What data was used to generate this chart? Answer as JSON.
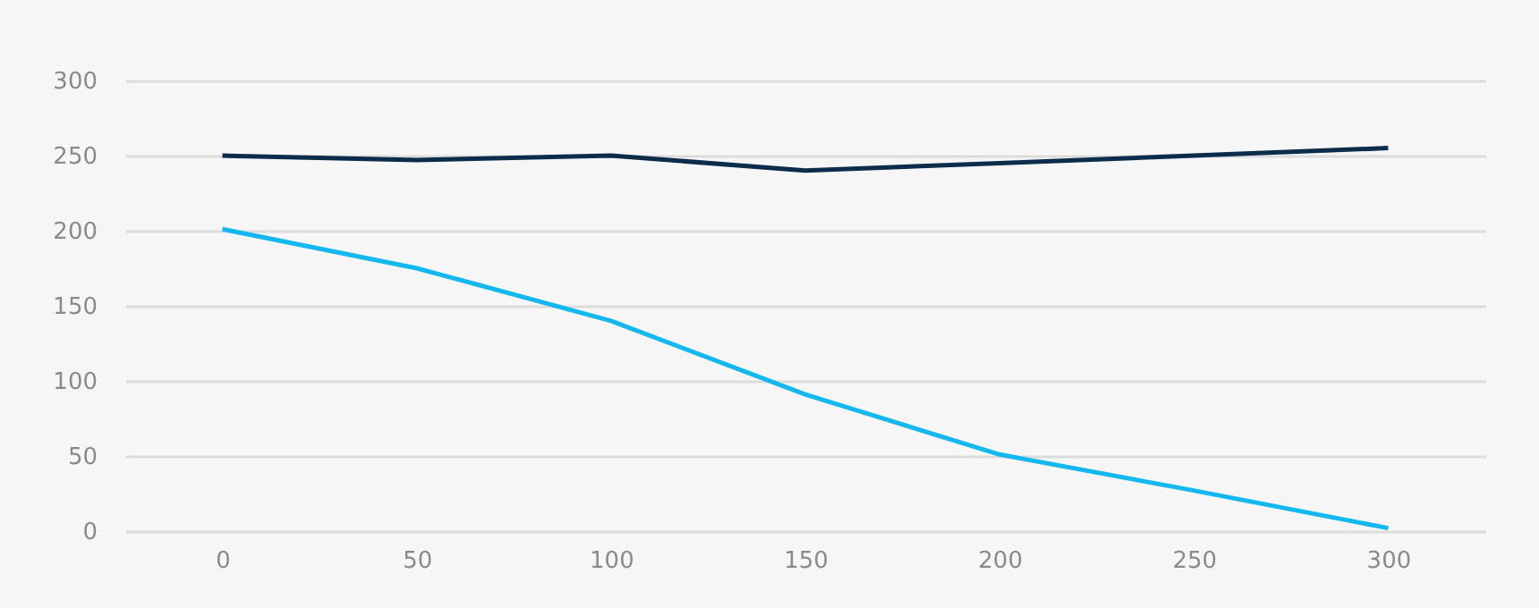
{
  "chart_data": {
    "type": "line",
    "x": [
      0,
      50,
      100,
      150,
      200,
      250,
      300
    ],
    "series": [
      {
        "color": "#0b2c4a",
        "values": [
          250,
          247,
          250,
          240,
          245,
          250,
          255
        ]
      },
      {
        "color": "#12b8ef",
        "values": [
          201,
          175,
          140,
          91,
          51,
          27,
          2
        ]
      }
    ],
    "xlim": [
      -25,
      325
    ],
    "xticks": [
      0,
      50,
      100,
      150,
      200,
      250,
      300
    ],
    "ylim": [
      0,
      300
    ],
    "yticks": [
      0,
      50,
      100,
      150,
      200,
      250,
      300
    ],
    "grid": "y",
    "legend": false,
    "marker": "none",
    "line_style": "solid"
  }
}
